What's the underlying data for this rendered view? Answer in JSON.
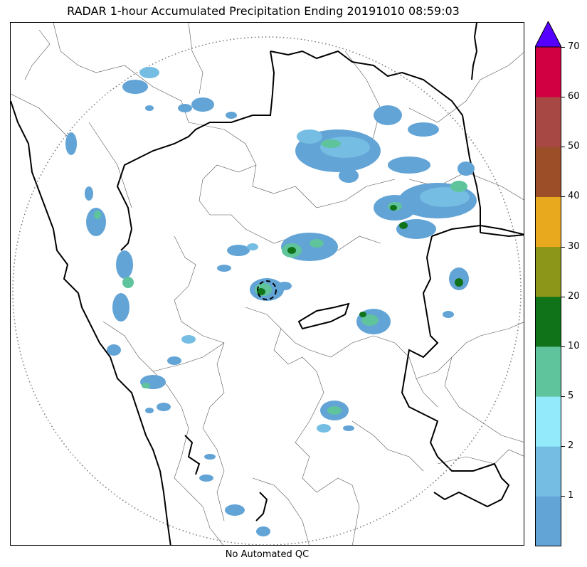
{
  "title": "RADAR 1-hour Accumulated Precipitation Ending 20191010 08:59:03",
  "footer": "No Automated QC",
  "colorbar": {
    "extend_color": "#5500ff",
    "colors": [
      "#63a4d6",
      "#75bde3",
      "#93eafa",
      "#5fc49c",
      "#10731a",
      "#8c9618",
      "#e8a91e",
      "#9b4e27",
      "#a84845",
      "#d10043"
    ],
    "tick_labels": [
      "1",
      "2",
      "5",
      "10",
      "20",
      "30",
      "40",
      "50",
      "60",
      "70"
    ]
  },
  "map": {
    "range_ring": "dotted",
    "radar_marker": "dashed-circle",
    "basemap": "state and district boundaries, coastline"
  }
}
